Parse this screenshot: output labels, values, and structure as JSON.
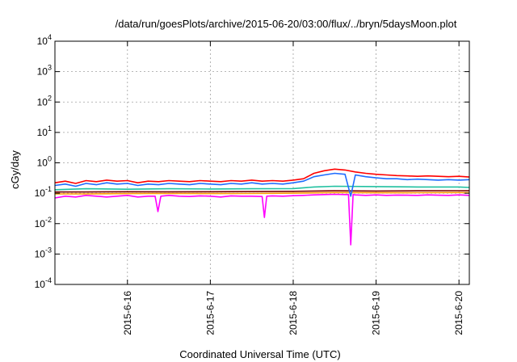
{
  "chart_data": {
    "type": "line",
    "title": "/data/run/goesPlots/archive/2015-06-20/03:00/flux/../bryn/5daysMoon.plot",
    "xlabel": "Coordinated Universal Time (UTC)",
    "ylabel": "cGy/day",
    "yscale": "log",
    "ylim": [
      0.0001,
      10000
    ],
    "xlim": [
      "2015-06-15 03:00",
      "2015-06-20 03:00"
    ],
    "grid": true,
    "x_tick_labels": [
      "2015-6-16",
      "2015-6-17",
      "2015-6-18",
      "2015-6-19",
      "2015-6-20"
    ],
    "x_tick_dates": [
      "2015-06-16 00:00",
      "2015-06-17 00:00",
      "2015-06-18 00:00",
      "2015-06-19 00:00",
      "2015-06-20 00:00"
    ],
    "y_ticks": [
      {
        "value": 0.0001,
        "base": "10",
        "exp": "-4"
      },
      {
        "value": 0.001,
        "base": "10",
        "exp": "-3"
      },
      {
        "value": 0.01,
        "base": "10",
        "exp": "-2"
      },
      {
        "value": 0.1,
        "base": "10",
        "exp": "-1"
      },
      {
        "value": 1,
        "base": "10",
        "exp": "0"
      },
      {
        "value": 10,
        "base": "10",
        "exp": "1"
      },
      {
        "value": 100,
        "base": "10",
        "exp": "2"
      },
      {
        "value": 1000,
        "base": "10",
        "exp": "3"
      },
      {
        "value": 10000,
        "base": "10",
        "exp": "4"
      }
    ],
    "series": [
      {
        "color": "#ff00ff",
        "x": [
          "2015-06-15 03:00",
          "2015-06-15 06:00",
          "2015-06-15 09:00",
          "2015-06-15 12:00",
          "2015-06-15 15:00",
          "2015-06-15 18:00",
          "2015-06-15 21:00",
          "2015-06-16 00:00",
          "2015-06-16 03:00",
          "2015-06-16 06:00",
          "2015-06-16 08:00",
          "2015-06-16 08:50",
          "2015-06-16 09:40",
          "2015-06-16 12:00",
          "2015-06-16 15:00",
          "2015-06-16 18:00",
          "2015-06-16 21:00",
          "2015-06-17 00:00",
          "2015-06-17 03:00",
          "2015-06-17 06:00",
          "2015-06-17 09:00",
          "2015-06-17 12:00",
          "2015-06-17 15:00",
          "2015-06-17 15:40",
          "2015-06-17 16:20",
          "2015-06-17 18:00",
          "2015-06-17 21:00",
          "2015-06-18 00:00",
          "2015-06-18 03:00",
          "2015-06-18 06:00",
          "2015-06-18 09:00",
          "2015-06-18 12:00",
          "2015-06-18 15:00",
          "2015-06-18 16:00",
          "2015-06-18 16:40",
          "2015-06-18 17:20",
          "2015-06-18 18:00",
          "2015-06-18 21:00",
          "2015-06-19 00:00",
          "2015-06-19 03:00",
          "2015-06-19 06:00",
          "2015-06-19 09:00",
          "2015-06-19 12:00",
          "2015-06-19 15:00",
          "2015-06-19 18:00",
          "2015-06-19 21:00",
          "2015-06-20 00:00",
          "2015-06-20 03:00"
        ],
        "values": [
          0.07,
          0.08,
          0.075,
          0.085,
          0.08,
          0.075,
          0.08,
          0.085,
          0.075,
          0.08,
          0.08,
          0.025,
          0.08,
          0.085,
          0.08,
          0.078,
          0.082,
          0.08,
          0.075,
          0.082,
          0.08,
          0.08,
          0.078,
          0.016,
          0.08,
          0.082,
          0.08,
          0.083,
          0.085,
          0.088,
          0.09,
          0.092,
          0.09,
          0.09,
          0.002,
          0.09,
          0.088,
          0.085,
          0.088,
          0.085,
          0.087,
          0.086,
          0.085,
          0.088,
          0.086,
          0.085,
          0.088,
          0.085
        ]
      },
      {
        "color": "#ff9900",
        "x": [
          "2015-06-15 03:00",
          "2015-06-15 12:00",
          "2015-06-16 00:00",
          "2015-06-16 12:00",
          "2015-06-17 00:00",
          "2015-06-17 12:00",
          "2015-06-18 00:00",
          "2015-06-18 12:00",
          "2015-06-19 00:00",
          "2015-06-19 12:00",
          "2015-06-20 00:00",
          "2015-06-20 03:00"
        ],
        "values": [
          0.095,
          0.095,
          0.097,
          0.098,
          0.097,
          0.098,
          0.1,
          0.105,
          0.103,
          0.104,
          0.105,
          0.104
        ]
      },
      {
        "color": "#800000",
        "x": [
          "2015-06-15 03:00",
          "2015-06-15 12:00",
          "2015-06-16 00:00",
          "2015-06-16 12:00",
          "2015-06-17 00:00",
          "2015-06-17 12:00",
          "2015-06-18 00:00",
          "2015-06-18 12:00",
          "2015-06-19 00:00",
          "2015-06-19 12:00",
          "2015-06-20 00:00",
          "2015-06-20 03:00"
        ],
        "values": [
          0.11,
          0.11,
          0.112,
          0.111,
          0.112,
          0.113,
          0.115,
          0.12,
          0.118,
          0.12,
          0.121,
          0.12
        ]
      },
      {
        "color": "#20c0a0",
        "x": [
          "2015-06-15 03:00",
          "2015-06-15 12:00",
          "2015-06-16 00:00",
          "2015-06-16 12:00",
          "2015-06-17 00:00",
          "2015-06-17 12:00",
          "2015-06-18 00:00",
          "2015-06-18 06:00",
          "2015-06-18 12:00",
          "2015-06-19 00:00",
          "2015-06-19 12:00",
          "2015-06-20 00:00",
          "2015-06-20 03:00"
        ],
        "values": [
          0.13,
          0.14,
          0.135,
          0.14,
          0.138,
          0.14,
          0.142,
          0.16,
          0.17,
          0.165,
          0.16,
          0.16,
          0.155
        ]
      },
      {
        "color": "#1e6cff",
        "x": [
          "2015-06-15 03:00",
          "2015-06-15 06:00",
          "2015-06-15 09:00",
          "2015-06-15 12:00",
          "2015-06-15 15:00",
          "2015-06-15 18:00",
          "2015-06-15 21:00",
          "2015-06-16 00:00",
          "2015-06-16 03:00",
          "2015-06-16 06:00",
          "2015-06-16 09:00",
          "2015-06-16 12:00",
          "2015-06-16 15:00",
          "2015-06-16 18:00",
          "2015-06-16 21:00",
          "2015-06-17 00:00",
          "2015-06-17 03:00",
          "2015-06-17 06:00",
          "2015-06-17 09:00",
          "2015-06-17 12:00",
          "2015-06-17 15:00",
          "2015-06-17 18:00",
          "2015-06-17 21:00",
          "2015-06-18 00:00",
          "2015-06-18 03:00",
          "2015-06-18 06:00",
          "2015-06-18 09:00",
          "2015-06-18 12:00",
          "2015-06-18 15:00",
          "2015-06-18 16:40",
          "2015-06-18 18:00",
          "2015-06-18 21:00",
          "2015-06-19 00:00",
          "2015-06-19 03:00",
          "2015-06-19 06:00",
          "2015-06-19 09:00",
          "2015-06-19 12:00",
          "2015-06-19 15:00",
          "2015-06-19 18:00",
          "2015-06-19 21:00",
          "2015-06-20 00:00",
          "2015-06-20 03:00"
        ],
        "values": [
          0.18,
          0.2,
          0.17,
          0.21,
          0.19,
          0.22,
          0.2,
          0.21,
          0.18,
          0.2,
          0.19,
          0.21,
          0.2,
          0.19,
          0.21,
          0.2,
          0.19,
          0.21,
          0.2,
          0.22,
          0.2,
          0.21,
          0.2,
          0.22,
          0.25,
          0.35,
          0.4,
          0.45,
          0.42,
          0.08,
          0.4,
          0.35,
          0.32,
          0.3,
          0.3,
          0.28,
          0.29,
          0.28,
          0.27,
          0.28,
          0.27,
          0.28
        ]
      },
      {
        "color": "#ff0000",
        "x": [
          "2015-06-15 03:00",
          "2015-06-15 06:00",
          "2015-06-15 09:00",
          "2015-06-15 12:00",
          "2015-06-15 15:00",
          "2015-06-15 18:00",
          "2015-06-15 21:00",
          "2015-06-16 00:00",
          "2015-06-16 03:00",
          "2015-06-16 06:00",
          "2015-06-16 09:00",
          "2015-06-16 12:00",
          "2015-06-16 15:00",
          "2015-06-16 18:00",
          "2015-06-16 21:00",
          "2015-06-17 00:00",
          "2015-06-17 03:00",
          "2015-06-17 06:00",
          "2015-06-17 09:00",
          "2015-06-17 12:00",
          "2015-06-17 15:00",
          "2015-06-17 18:00",
          "2015-06-17 21:00",
          "2015-06-18 00:00",
          "2015-06-18 03:00",
          "2015-06-18 06:00",
          "2015-06-18 09:00",
          "2015-06-18 12:00",
          "2015-06-18 15:00",
          "2015-06-18 18:00",
          "2015-06-18 21:00",
          "2015-06-19 00:00",
          "2015-06-19 03:00",
          "2015-06-19 06:00",
          "2015-06-19 09:00",
          "2015-06-19 12:00",
          "2015-06-19 15:00",
          "2015-06-19 18:00",
          "2015-06-19 21:00",
          "2015-06-20 00:00",
          "2015-06-20 03:00"
        ],
        "values": [
          0.22,
          0.25,
          0.21,
          0.26,
          0.24,
          0.27,
          0.25,
          0.26,
          0.22,
          0.25,
          0.24,
          0.26,
          0.25,
          0.24,
          0.26,
          0.25,
          0.24,
          0.26,
          0.25,
          0.27,
          0.25,
          0.26,
          0.25,
          0.27,
          0.3,
          0.45,
          0.55,
          0.62,
          0.58,
          0.5,
          0.45,
          0.42,
          0.4,
          0.38,
          0.37,
          0.36,
          0.37,
          0.36,
          0.35,
          0.36,
          0.34
        ]
      }
    ]
  }
}
